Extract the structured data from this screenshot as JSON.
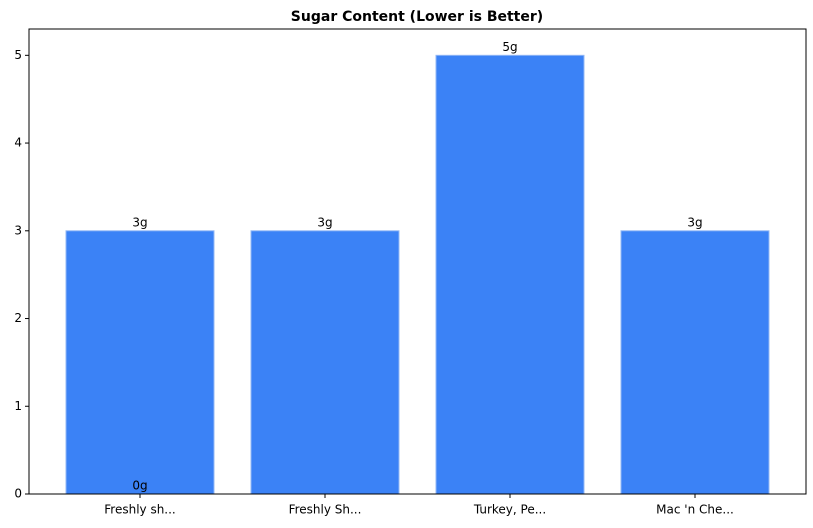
{
  "chart_data": {
    "type": "bar",
    "title": "Sugar Content (Lower is Better)",
    "categories": [
      "Freshly sh...",
      "Freshly Sh...",
      "Turkey, Pe...",
      "Mac 'n Che..."
    ],
    "values": [
      3,
      3,
      5,
      3
    ],
    "value_labels": [
      "3g",
      "3g",
      "5g",
      "3g"
    ],
    "color": "#3b82f6",
    "ylim": [
      0,
      5.3
    ],
    "yticks": [
      0,
      1,
      2,
      3,
      4,
      5
    ],
    "grid": false,
    "annotations": [
      {
        "text": "0g",
        "x": "Freshly sh...",
        "y": 0
      }
    ]
  }
}
